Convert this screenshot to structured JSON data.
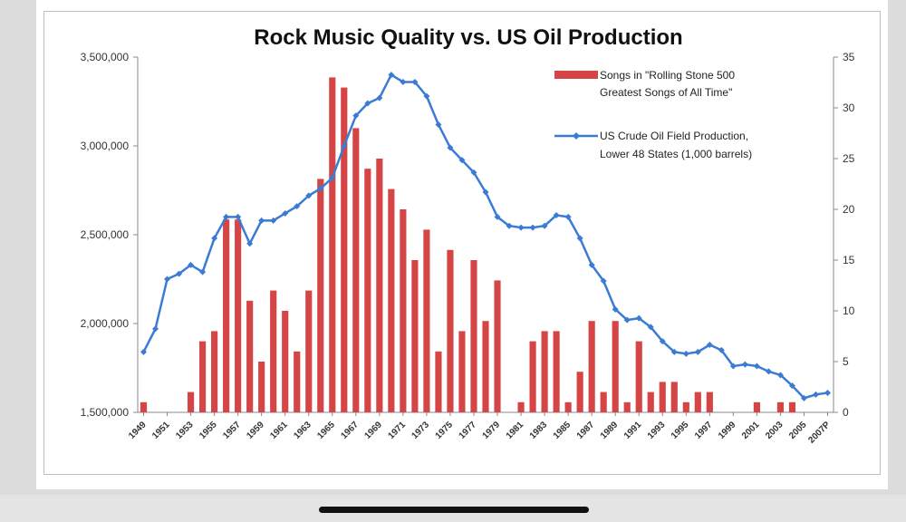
{
  "chart_data": {
    "type": "bar+line",
    "title": "Rock Music Quality vs. US Oil Production",
    "x": [
      "1949",
      "1950",
      "1951",
      "1952",
      "1953",
      "1954",
      "1955",
      "1956",
      "1957",
      "1958",
      "1959",
      "1960",
      "1961",
      "1962",
      "1963",
      "1964",
      "1965",
      "1966",
      "1967",
      "1968",
      "1969",
      "1970",
      "1971",
      "1972",
      "1973",
      "1974",
      "1975",
      "1976",
      "1977",
      "1978",
      "1979",
      "1980",
      "1981",
      "1982",
      "1983",
      "1984",
      "1985",
      "1986",
      "1987",
      "1988",
      "1989",
      "1990",
      "1991",
      "1992",
      "1993",
      "1994",
      "1995",
      "1996",
      "1997",
      "1998",
      "1999",
      "2000",
      "2001",
      "2002",
      "2003",
      "2004",
      "2005",
      "2006",
      "2007P"
    ],
    "x_tick_labels": [
      "1949",
      "1951",
      "1953",
      "1955",
      "1957",
      "1959",
      "1961",
      "1963",
      "1965",
      "1967",
      "1969",
      "1971",
      "1973",
      "1975",
      "1977",
      "1979",
      "1981",
      "1983",
      "1985",
      "1987",
      "1989",
      "1991",
      "1993",
      "1995",
      "1997",
      "1999",
      "2001",
      "2003",
      "2005",
      "2007P"
    ],
    "y_left": {
      "range": [
        1500000,
        3500000
      ],
      "ticks": [
        "1,500,000",
        "2,000,000",
        "2,500,000",
        "3,000,000",
        "3,500,000"
      ],
      "tick_values": [
        1500000,
        2000000,
        2500000,
        3000000,
        3500000
      ]
    },
    "y_right": {
      "range": [
        0,
        35
      ],
      "ticks": [
        "0",
        "5",
        "10",
        "15",
        "20",
        "25",
        "30",
        "35"
      ],
      "tick_values": [
        0,
        5,
        10,
        15,
        20,
        25,
        30,
        35
      ]
    },
    "series": [
      {
        "name": "Songs in \"Rolling Stone 500 Greatest Songs of All Time\"",
        "legend_lines": [
          "Songs in \"Rolling Stone 500",
          "Greatest Songs of All Time\""
        ],
        "type": "bar",
        "axis": "right",
        "color": "#d64545",
        "values": [
          1,
          0,
          0,
          0,
          2,
          7,
          8,
          19,
          19,
          11,
          5,
          12,
          10,
          6,
          12,
          23,
          33,
          32,
          28,
          24,
          25,
          22,
          20,
          15,
          18,
          6,
          16,
          8,
          15,
          9,
          13,
          0,
          1,
          7,
          8,
          8,
          1,
          4,
          9,
          2,
          9,
          1,
          7,
          2,
          3,
          3,
          1,
          2,
          2,
          0,
          0,
          0,
          1,
          0,
          1,
          1,
          0,
          0,
          0
        ]
      },
      {
        "name": "US Crude Oil Field Production, Lower 48 States (1,000 barrels)",
        "legend_lines": [
          "US Crude Oil Field Production,",
          "Lower 48 States (1,000 barrels)"
        ],
        "type": "line",
        "axis": "left",
        "color": "#3b7bd4",
        "values": [
          1840000,
          1970000,
          2250000,
          2280000,
          2330000,
          2290000,
          2480000,
          2600000,
          2600000,
          2450000,
          2580000,
          2580000,
          2620000,
          2660000,
          2720000,
          2760000,
          2820000,
          3000000,
          3170000,
          3240000,
          3270000,
          3400000,
          3360000,
          3360000,
          3280000,
          3120000,
          2990000,
          2920000,
          2850000,
          2740000,
          2600000,
          2550000,
          2540000,
          2540000,
          2550000,
          2610000,
          2600000,
          2480000,
          2330000,
          2240000,
          2080000,
          2020000,
          2030000,
          1980000,
          1900000,
          1840000,
          1830000,
          1840000,
          1880000,
          1850000,
          1760000,
          1770000,
          1760000,
          1730000,
          1710000,
          1650000,
          1580000,
          1600000,
          1610000
        ]
      }
    ],
    "legend": "top-right",
    "grid": false
  }
}
